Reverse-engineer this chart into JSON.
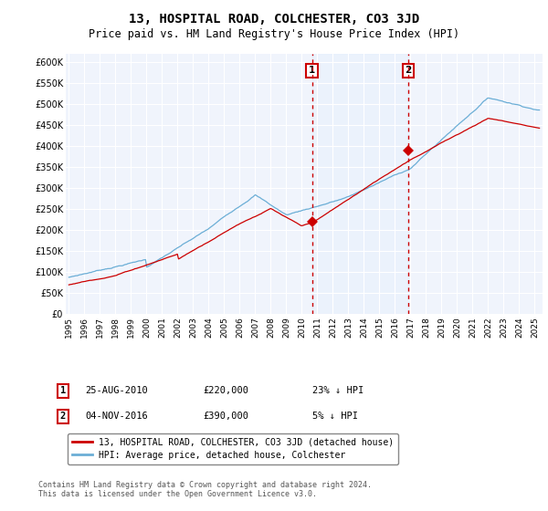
{
  "title": "13, HOSPITAL ROAD, COLCHESTER, CO3 3JD",
  "subtitle": "Price paid vs. HM Land Registry's House Price Index (HPI)",
  "title_fontsize": 10,
  "subtitle_fontsize": 8.5,
  "ylabel_ticks": [
    "£0",
    "£50K",
    "£100K",
    "£150K",
    "£200K",
    "£250K",
    "£300K",
    "£350K",
    "£400K",
    "£450K",
    "£500K",
    "£550K",
    "£600K"
  ],
  "ytick_values": [
    0,
    50000,
    100000,
    150000,
    200000,
    250000,
    300000,
    350000,
    400000,
    450000,
    500000,
    550000,
    600000
  ],
  "ylim": [
    0,
    620000
  ],
  "xlim_start": 1994.8,
  "xlim_end": 2025.5,
  "hpi_color": "#6baed6",
  "price_color": "#cc0000",
  "sale1_x": 2010.65,
  "sale1_y": 220000,
  "sale2_x": 2016.84,
  "sale2_y": 390000,
  "vline_color": "#cc0000",
  "vline_style": "--",
  "shade_color": "#ddeeff",
  "background_color": "#ffffff",
  "plot_bg_color": "#f0f4fc",
  "legend_label1": "13, HOSPITAL ROAD, COLCHESTER, CO3 3JD (detached house)",
  "legend_label2": "HPI: Average price, detached house, Colchester",
  "annotation1_num": "1",
  "annotation1_date": "25-AUG-2010",
  "annotation1_price": "£220,000",
  "annotation1_stat": "23% ↓ HPI",
  "annotation2_num": "2",
  "annotation2_date": "04-NOV-2016",
  "annotation2_price": "£390,000",
  "annotation2_stat": "5% ↓ HPI",
  "footer": "Contains HM Land Registry data © Crown copyright and database right 2024.\nThis data is licensed under the Open Government Licence v3.0.",
  "xtick_years": [
    1995,
    1996,
    1997,
    1998,
    1999,
    2000,
    2001,
    2002,
    2003,
    2004,
    2005,
    2006,
    2007,
    2008,
    2009,
    2010,
    2011,
    2012,
    2013,
    2014,
    2015,
    2016,
    2017,
    2018,
    2019,
    2020,
    2021,
    2022,
    2023,
    2024,
    2025
  ]
}
